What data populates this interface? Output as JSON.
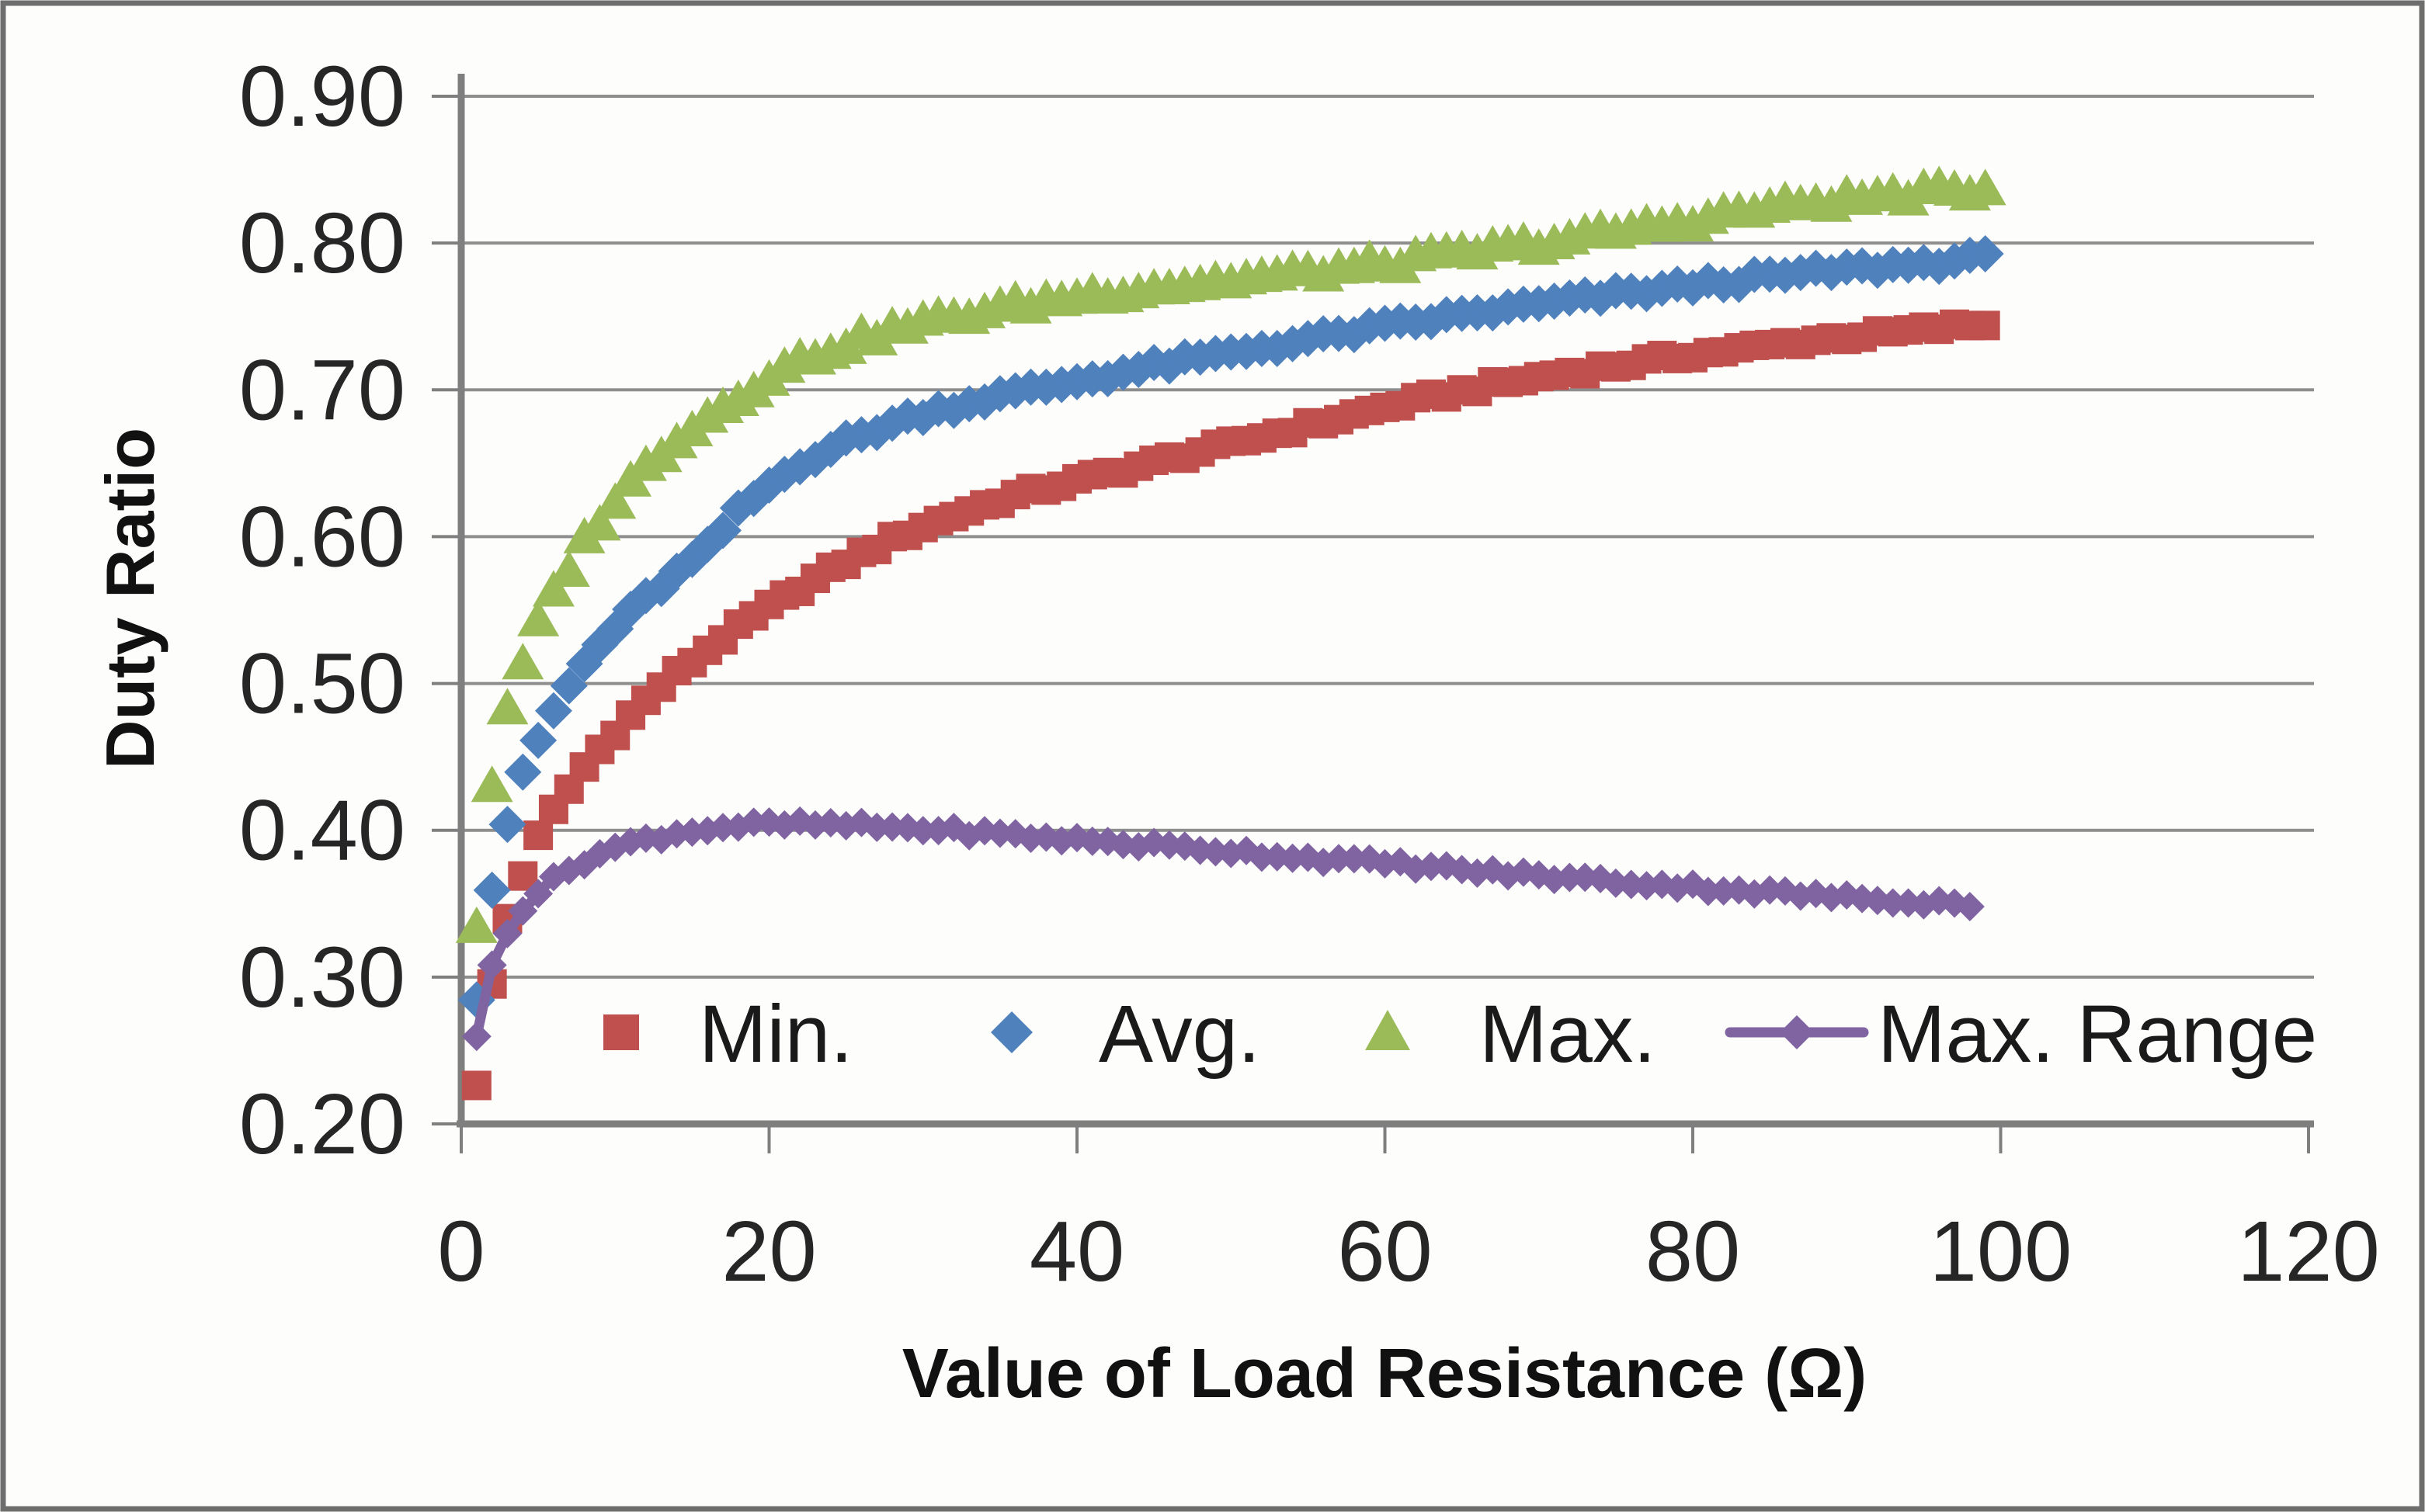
{
  "chart_data": {
    "type": "scatter",
    "title": "",
    "xlabel": "Value of Load Resistance (Ω)",
    "ylabel": "Duty Ratio",
    "xlim": [
      0,
      120
    ],
    "ylim": [
      0.2,
      0.9
    ],
    "grid": "horizontal",
    "legend_position": "bottom-inside",
    "x_ticks": [
      0,
      20,
      40,
      60,
      80,
      100,
      120
    ],
    "x_tick_labels": [
      "0",
      "20",
      "40",
      "60",
      "80",
      "100",
      "120"
    ],
    "y_ticks": [
      0.2,
      0.3,
      0.4,
      0.5,
      0.6,
      0.7,
      0.8,
      0.9
    ],
    "y_tick_labels": [
      "0.20",
      "0.30",
      "0.40",
      "0.50",
      "0.60",
      "0.70",
      "0.80",
      "0.90"
    ],
    "colors": {
      "min": "#C0504D",
      "avg": "#4F81BD",
      "max": "#9BBB59",
      "max_range": "#8064A2",
      "gridline": "#8e8e8e",
      "axis_line": "#7f7f7f",
      "border": "#6e6e6e"
    },
    "series": [
      {
        "name": "Min.",
        "marker": "square",
        "color": "#C0504D",
        "line": false,
        "x": [
          1,
          2,
          3,
          4,
          5,
          6,
          7,
          8,
          9,
          10,
          11,
          12,
          13,
          14,
          15,
          16,
          17,
          18,
          19,
          20,
          22,
          24,
          26,
          28,
          30,
          33,
          36,
          40,
          44,
          48,
          52,
          56,
          60,
          64,
          68,
          72,
          76,
          80,
          84,
          88,
          92,
          96,
          99
        ],
        "y": [
          0.225,
          0.295,
          0.34,
          0.37,
          0.395,
          0.413,
          0.428,
          0.443,
          0.455,
          0.467,
          0.478,
          0.488,
          0.498,
          0.507,
          0.515,
          0.523,
          0.531,
          0.538,
          0.545,
          0.552,
          0.565,
          0.577,
          0.588,
          0.598,
          0.607,
          0.618,
          0.628,
          0.638,
          0.648,
          0.658,
          0.668,
          0.678,
          0.688,
          0.697,
          0.705,
          0.712,
          0.718,
          0.724,
          0.729,
          0.734,
          0.738,
          0.742,
          0.745
        ]
      },
      {
        "name": "Avg.",
        "marker": "diamond",
        "color": "#4F81BD",
        "line": false,
        "x": [
          1,
          2,
          3,
          4,
          5,
          6,
          7,
          8,
          9,
          10,
          12,
          14,
          16,
          18,
          20,
          22,
          25,
          28,
          30,
          35,
          40,
          45,
          50,
          55,
          60,
          65,
          70,
          75,
          80,
          85,
          90,
          95,
          99
        ],
        "y": [
          0.287,
          0.36,
          0.405,
          0.437,
          0.461,
          0.481,
          0.498,
          0.513,
          0.526,
          0.538,
          0.558,
          0.575,
          0.592,
          0.617,
          0.635,
          0.65,
          0.665,
          0.677,
          0.684,
          0.696,
          0.706,
          0.716,
          0.725,
          0.734,
          0.743,
          0.751,
          0.758,
          0.765,
          0.771,
          0.777,
          0.782,
          0.786,
          0.79
        ]
      },
      {
        "name": "Max.",
        "marker": "triangle",
        "color": "#9BBB59",
        "line": false,
        "x": [
          1,
          2,
          3,
          4,
          5,
          6,
          7,
          8,
          9,
          10,
          12,
          14,
          16,
          18,
          20,
          22,
          25,
          28,
          30,
          35,
          40,
          45,
          50,
          55,
          60,
          65,
          70,
          75,
          80,
          84,
          88,
          92,
          96,
          99
        ],
        "y": [
          0.335,
          0.432,
          0.48,
          0.513,
          0.54,
          0.562,
          0.58,
          0.597,
          0.612,
          0.625,
          0.648,
          0.668,
          0.682,
          0.696,
          0.71,
          0.72,
          0.732,
          0.741,
          0.746,
          0.756,
          0.764,
          0.77,
          0.775,
          0.78,
          0.786,
          0.793,
          0.8,
          0.808,
          0.816,
          0.823,
          0.828,
          0.832,
          0.835,
          0.837
        ]
      },
      {
        "name": "Max. Range",
        "marker": "small-diamond",
        "color": "#8064A2",
        "line": true,
        "x": [
          1,
          2,
          3,
          4,
          5,
          6,
          7,
          8,
          9,
          10,
          12,
          14,
          16,
          18,
          20,
          23,
          26,
          30,
          34,
          38,
          42,
          46,
          50,
          54,
          58,
          62,
          66,
          70,
          74,
          78,
          82,
          86,
          90,
          94,
          98
        ],
        "y": [
          0.258,
          0.308,
          0.332,
          0.347,
          0.358,
          0.366,
          0.373,
          0.379,
          0.384,
          0.388,
          0.394,
          0.398,
          0.401,
          0.403,
          0.404,
          0.404,
          0.403,
          0.401,
          0.398,
          0.395,
          0.392,
          0.389,
          0.386,
          0.382,
          0.379,
          0.376,
          0.372,
          0.369,
          0.366,
          0.363,
          0.36,
          0.357,
          0.354,
          0.352,
          0.35
        ]
      }
    ]
  }
}
